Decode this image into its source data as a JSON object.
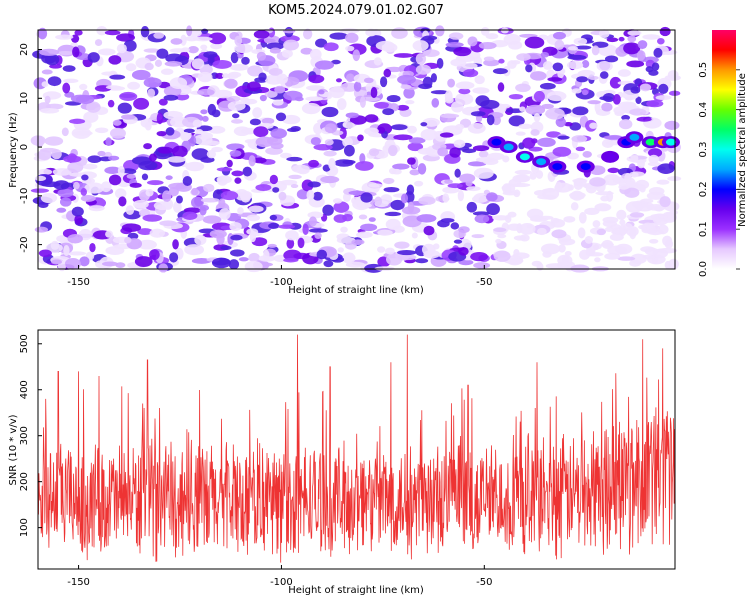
{
  "figure": {
    "title": "KOM5.2024.079.01.02.G07"
  },
  "chart_data": [
    {
      "type": "heatmap",
      "title": "KOM5.2024.079.01.02.G07",
      "xlabel": "Height of straight line (km)",
      "ylabel": "Frequency (Hz)",
      "xlim": [
        -160,
        -3
      ],
      "ylim": [
        -25,
        24
      ],
      "xticks": [
        -150,
        -100,
        -50
      ],
      "yticks": [
        20,
        10,
        0,
        -10,
        -20
      ],
      "colorbar": {
        "label": "Normalized spectral amplitude",
        "range": [
          0.0,
          0.6
        ],
        "ticks": [
          0.0,
          0.1,
          0.2,
          0.3,
          0.4,
          0.5
        ],
        "colors": [
          "#ffffff",
          "#e6c8ff",
          "#9b30ff",
          "#6600ee",
          "#0000ff",
          "#00aaff",
          "#00ffee",
          "#00ff66",
          "#66ff00",
          "#ffff00",
          "#ff9900",
          "#ff0000",
          "#ff0066"
        ]
      },
      "features": [
        {
          "x": -47,
          "y": 1,
          "value": 0.2
        },
        {
          "x": -44,
          "y": 0,
          "value": 0.25
        },
        {
          "x": -40,
          "y": -2,
          "value": 0.3
        },
        {
          "x": -36,
          "y": -3,
          "value": 0.25
        },
        {
          "x": -32,
          "y": -4,
          "value": 0.2
        },
        {
          "x": -25,
          "y": -4,
          "value": 0.2
        },
        {
          "x": -19,
          "y": -2,
          "value": 0.15
        },
        {
          "x": -15,
          "y": 1,
          "value": 0.2
        },
        {
          "x": -13,
          "y": 2,
          "value": 0.25
        },
        {
          "x": -9,
          "y": 1,
          "value": 0.35
        },
        {
          "x": -6,
          "y": 1,
          "value": 0.5
        },
        {
          "x": -4,
          "y": 1,
          "value": 0.3
        }
      ]
    },
    {
      "type": "line",
      "xlabel": "Height of straight line (km)",
      "ylabel": "SNR (10 * v/v)",
      "xlim": [
        -160,
        -3
      ],
      "ylim": [
        10,
        530
      ],
      "xticks": [
        -150,
        -100,
        -50
      ],
      "yticks": [
        100,
        200,
        300,
        400,
        500
      ],
      "series": [
        {
          "color": "#ee3333",
          "trend": {
            "x": [
              -160,
              -100,
              -50,
              -30,
              -10,
              -3
            ],
            "y": [
              160,
              160,
              160,
              170,
              215,
              230
            ]
          },
          "peaks": [
            {
              "x": -155,
              "y": 440
            },
            {
              "x": -150,
              "y": 440
            },
            {
              "x": -145,
              "y": 430
            },
            {
              "x": -133,
              "y": 465
            },
            {
              "x": -96,
              "y": 520
            },
            {
              "x": -88,
              "y": 450
            },
            {
              "x": -73,
              "y": 460
            },
            {
              "x": -69,
              "y": 520
            },
            {
              "x": -54,
              "y": 410
            },
            {
              "x": -37,
              "y": 460
            },
            {
              "x": -11,
              "y": 510
            },
            {
              "x": -6,
              "y": 490
            }
          ]
        }
      ]
    }
  ]
}
